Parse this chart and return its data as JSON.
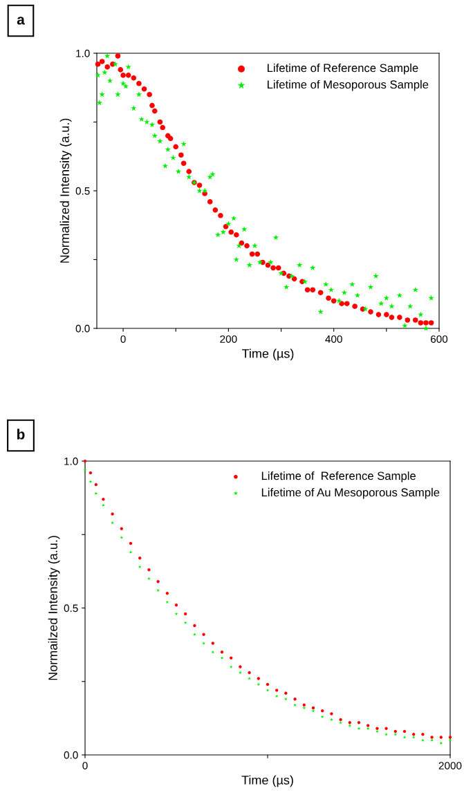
{
  "chart_data": [
    {
      "type": "scatter",
      "xlabel": "Time (µs)",
      "ylabel": "Normalized Intensity (a.u.)",
      "annotations": [
        "a"
      ],
      "xlim": [
        -50,
        600
      ],
      "ylim": [
        0,
        1
      ],
      "xticks": [
        0,
        {
          "value": 100,
          "label": null
        },
        200,
        {
          "value": 300,
          "label": null
        },
        400,
        {
          "value": 500,
          "label": null
        },
        600
      ],
      "yticks": [
        {
          "value": 0,
          "label": "0.0"
        },
        {
          "value": 0.25,
          "label": null
        },
        0.5,
        {
          "value": 0.75,
          "label": null
        },
        {
          "value": 1,
          "label": "1.0"
        }
      ],
      "grid": false,
      "legend": "top right",
      "series": [
        {
          "name": "Lifetime of Reference Sample",
          "color": "#ff0000",
          "marker": "circle",
          "x": [
            -48,
            -40,
            -30,
            -20,
            -10,
            -5,
            0,
            10,
            20,
            30,
            40,
            50,
            55,
            60,
            70,
            75,
            85,
            90,
            100,
            110,
            115,
            125,
            135,
            145,
            155,
            165,
            175,
            185,
            195,
            205,
            215,
            225,
            235,
            245,
            255,
            265,
            275,
            285,
            295,
            305,
            315,
            325,
            340,
            350,
            360,
            375,
            390,
            400,
            415,
            425,
            440,
            455,
            470,
            485,
            500,
            510,
            525,
            540,
            555,
            565,
            575,
            585
          ],
          "values": [
            0.96,
            0.97,
            0.95,
            0.96,
            0.99,
            0.94,
            0.92,
            0.92,
            0.91,
            0.89,
            0.87,
            0.85,
            0.81,
            0.79,
            0.75,
            0.73,
            0.7,
            0.69,
            0.66,
            0.63,
            0.6,
            0.57,
            0.53,
            0.52,
            0.49,
            0.46,
            0.43,
            0.41,
            0.37,
            0.35,
            0.34,
            0.31,
            0.3,
            0.27,
            0.27,
            0.24,
            0.23,
            0.22,
            0.22,
            0.2,
            0.19,
            0.18,
            0.17,
            0.14,
            0.14,
            0.13,
            0.11,
            0.1,
            0.09,
            0.09,
            0.08,
            0.07,
            0.06,
            0.05,
            0.05,
            0.04,
            0.04,
            0.03,
            0.03,
            0.02,
            0.02,
            0.02
          ]
        },
        {
          "name": "Lifetime of Mesoporous Sample",
          "color": "#00ee00",
          "marker": "star",
          "x": [
            -48,
            -45,
            -40,
            -35,
            -30,
            -25,
            -15,
            -10,
            0,
            5,
            10,
            20,
            30,
            35,
            45,
            55,
            60,
            70,
            80,
            85,
            95,
            105,
            115,
            125,
            135,
            145,
            155,
            165,
            170,
            180,
            190,
            200,
            210,
            215,
            220,
            230,
            240,
            250,
            260,
            280,
            290,
            300,
            310,
            320,
            335,
            345,
            360,
            375,
            385,
            395,
            410,
            420,
            435,
            445,
            460,
            470,
            480,
            490,
            500,
            510,
            525,
            535,
            545,
            555,
            565,
            575,
            585
          ],
          "values": [
            0.92,
            0.82,
            0.85,
            0.93,
            0.99,
            0.9,
            0.96,
            0.85,
            0.89,
            0.88,
            0.95,
            0.8,
            0.85,
            0.76,
            0.75,
            0.74,
            0.7,
            0.68,
            0.59,
            0.65,
            0.62,
            0.57,
            0.67,
            0.55,
            0.53,
            0.5,
            0.5,
            0.55,
            0.56,
            0.34,
            0.35,
            0.38,
            0.4,
            0.25,
            0.3,
            0.36,
            0.23,
            0.3,
            0.24,
            0.24,
            0.33,
            0.2,
            0.15,
            0.19,
            0.23,
            0.17,
            0.22,
            0.06,
            0.16,
            0.14,
            0.1,
            0.13,
            0.16,
            0.12,
            0.07,
            0.15,
            0.19,
            0.09,
            0.11,
            0.08,
            0.12,
            0.01,
            0.08,
            0.14,
            0.05,
            0,
            0.11
          ]
        }
      ]
    },
    {
      "type": "scatter",
      "xlabel": "Time (µs)",
      "ylabel": "Normailzed Intensity (a.u.)",
      "annotations": [
        "b"
      ],
      "xlim": [
        0,
        2000
      ],
      "ylim": [
        0,
        1
      ],
      "xticks": [
        0,
        {
          "value": 1000,
          "label": null
        },
        2000
      ],
      "yticks": [
        {
          "value": 0,
          "label": "0.0"
        },
        {
          "value": 0.25,
          "label": null
        },
        0.5,
        {
          "value": 0.75,
          "label": null
        },
        {
          "value": 1,
          "label": "1.0"
        }
      ],
      "grid": false,
      "legend": "top right",
      "series": [
        {
          "name": "Lifetime of  Reference Sample",
          "color": "#ff0000",
          "marker": "circle",
          "x": [
            0,
            30,
            60,
            100,
            150,
            200,
            250,
            300,
            350,
            400,
            450,
            500,
            550,
            600,
            650,
            700,
            750,
            800,
            850,
            900,
            950,
            1000,
            1050,
            1100,
            1150,
            1200,
            1250,
            1300,
            1350,
            1400,
            1450,
            1500,
            1550,
            1600,
            1650,
            1700,
            1750,
            1800,
            1850,
            1900,
            1950,
            2000
          ],
          "values": [
            1.0,
            0.96,
            0.92,
            0.87,
            0.82,
            0.77,
            0.72,
            0.67,
            0.63,
            0.59,
            0.55,
            0.51,
            0.48,
            0.44,
            0.41,
            0.38,
            0.35,
            0.33,
            0.3,
            0.28,
            0.26,
            0.24,
            0.22,
            0.21,
            0.19,
            0.17,
            0.16,
            0.15,
            0.14,
            0.12,
            0.11,
            0.11,
            0.1,
            0.09,
            0.09,
            0.08,
            0.08,
            0.07,
            0.07,
            0.06,
            0.06,
            0.06
          ]
        },
        {
          "name": "Lifetime of Au Mesoporous Sample",
          "color": "#00ee00",
          "marker": "star",
          "x": [
            0,
            30,
            60,
            100,
            150,
            200,
            250,
            300,
            350,
            400,
            450,
            500,
            550,
            600,
            650,
            700,
            750,
            800,
            850,
            900,
            950,
            1000,
            1050,
            1100,
            1150,
            1200,
            1250,
            1300,
            1350,
            1400,
            1450,
            1500,
            1550,
            1600,
            1650,
            1700,
            1750,
            1800,
            1850,
            1900,
            1950,
            2000
          ],
          "values": [
            0.97,
            0.93,
            0.89,
            0.85,
            0.79,
            0.74,
            0.69,
            0.64,
            0.6,
            0.56,
            0.52,
            0.48,
            0.45,
            0.41,
            0.38,
            0.35,
            0.33,
            0.3,
            0.28,
            0.26,
            0.24,
            0.22,
            0.2,
            0.19,
            0.17,
            0.16,
            0.15,
            0.13,
            0.12,
            0.11,
            0.1,
            0.09,
            0.09,
            0.08,
            0.07,
            0.07,
            0.06,
            0.06,
            0.05,
            0.05,
            0.04,
            0.05
          ]
        }
      ]
    }
  ]
}
